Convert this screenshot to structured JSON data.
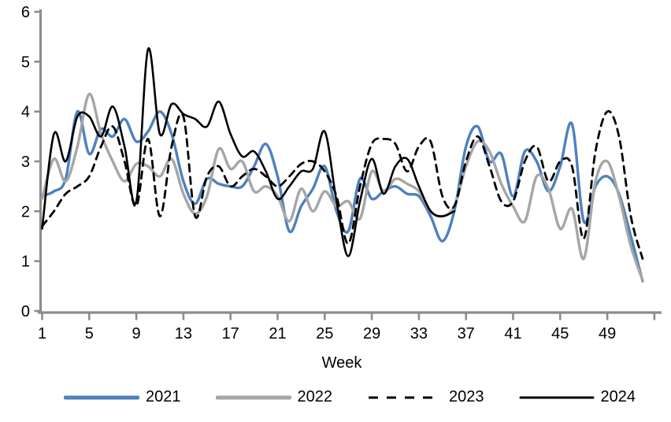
{
  "chart_data": {
    "type": "line",
    "title": "",
    "x_label": "Week",
    "y_label": "",
    "x_range": [
      1,
      53
    ],
    "y_range": [
      0,
      6
    ],
    "grid": false,
    "legend_position": "bottom",
    "axis_color": "#8C8C8C",
    "y_ticks": [
      0,
      1,
      2,
      3,
      4,
      5,
      6
    ],
    "x_ticks": [
      1,
      5,
      9,
      13,
      17,
      21,
      25,
      29,
      33,
      37,
      41,
      45,
      49,
      53
    ],
    "x_tick_labels": [
      "1",
      "5",
      "9",
      "13",
      "17",
      "21",
      "25",
      "29",
      "33",
      "37",
      "41",
      "45",
      "49"
    ],
    "weeks": [
      1,
      2,
      3,
      4,
      5,
      6,
      7,
      8,
      9,
      10,
      11,
      12,
      13,
      14,
      15,
      16,
      17,
      18,
      19,
      20,
      21,
      22,
      23,
      24,
      25,
      26,
      27,
      28,
      29,
      30,
      31,
      32,
      33,
      34,
      35,
      36,
      37,
      38,
      39,
      40,
      41,
      42,
      43,
      44,
      45,
      46,
      47,
      48,
      49,
      50,
      51,
      52
    ],
    "series": [
      {
        "name": "2021",
        "color": "#4F81BD",
        "style": "solid",
        "width": 3.4,
        "legend_stroke": 5,
        "values": [
          2.3,
          2.4,
          2.65,
          4.0,
          3.15,
          3.65,
          3.5,
          3.85,
          3.4,
          3.6,
          4.0,
          3.55,
          2.6,
          2.15,
          2.65,
          2.55,
          2.5,
          2.5,
          2.9,
          3.35,
          2.7,
          1.6,
          2.1,
          2.45,
          2.9,
          2.0,
          1.6,
          2.65,
          2.25,
          2.4,
          2.5,
          2.35,
          2.3,
          1.9,
          1.4,
          2.0,
          3.3,
          3.7,
          3.0,
          3.15,
          2.3,
          3.2,
          3.0,
          2.4,
          2.9,
          3.75,
          1.8,
          2.5,
          2.7,
          2.35,
          1.5,
          0.6
        ]
      },
      {
        "name": "2022",
        "color": "#A6A6A6",
        "style": "solid",
        "width": 3.4,
        "legend_stroke": 5,
        "values": [
          2.25,
          3.05,
          2.6,
          3.3,
          4.35,
          3.55,
          3.0,
          2.6,
          2.95,
          2.9,
          2.7,
          3.05,
          2.35,
          1.95,
          2.3,
          3.25,
          2.85,
          3.0,
          2.4,
          2.5,
          2.3,
          1.8,
          2.45,
          2.0,
          2.4,
          2.1,
          2.2,
          1.85,
          2.8,
          2.4,
          2.65,
          2.55,
          2.4,
          2.0,
          1.9,
          2.1,
          2.9,
          3.4,
          3.2,
          2.55,
          2.1,
          1.8,
          2.7,
          2.45,
          1.65,
          2.05,
          1.05,
          2.6,
          3.0,
          2.3,
          1.3,
          0.62
        ]
      },
      {
        "name": "2023",
        "color": "#000000",
        "style": "dashed",
        "width": 2.8,
        "legend_stroke": 3,
        "values": [
          1.7,
          2.0,
          2.35,
          2.5,
          2.7,
          3.3,
          3.7,
          3.0,
          2.1,
          3.45,
          1.9,
          3.3,
          3.9,
          1.9,
          2.7,
          2.9,
          2.5,
          2.7,
          2.85,
          2.7,
          2.5,
          2.7,
          2.95,
          3.0,
          2.8,
          2.3,
          1.35,
          2.5,
          3.35,
          3.45,
          3.35,
          2.8,
          3.3,
          3.4,
          2.3,
          2.1,
          3.0,
          3.5,
          2.9,
          2.2,
          2.2,
          3.0,
          3.3,
          2.6,
          3.0,
          2.9,
          1.45,
          3.2,
          4.0,
          3.5,
          1.9,
          1.05
        ]
      },
      {
        "name": "2024",
        "color": "#000000",
        "style": "solid",
        "width": 2.6,
        "legend_stroke": 3,
        "values": [
          1.65,
          3.55,
          3.0,
          3.9,
          3.9,
          3.5,
          4.1,
          3.3,
          2.2,
          5.25,
          3.55,
          4.15,
          3.95,
          3.85,
          3.7,
          4.2,
          3.55,
          3.1,
          3.2,
          2.8,
          2.25,
          2.5,
          2.8,
          2.85,
          3.6,
          2.2,
          1.1,
          2.2,
          3.05,
          2.35,
          2.9,
          3.05,
          2.5,
          2.0,
          1.9,
          2.0,
          null,
          null,
          null,
          null,
          null,
          null,
          null,
          null,
          null,
          null,
          null,
          null,
          null,
          null,
          null,
          null
        ]
      }
    ]
  }
}
